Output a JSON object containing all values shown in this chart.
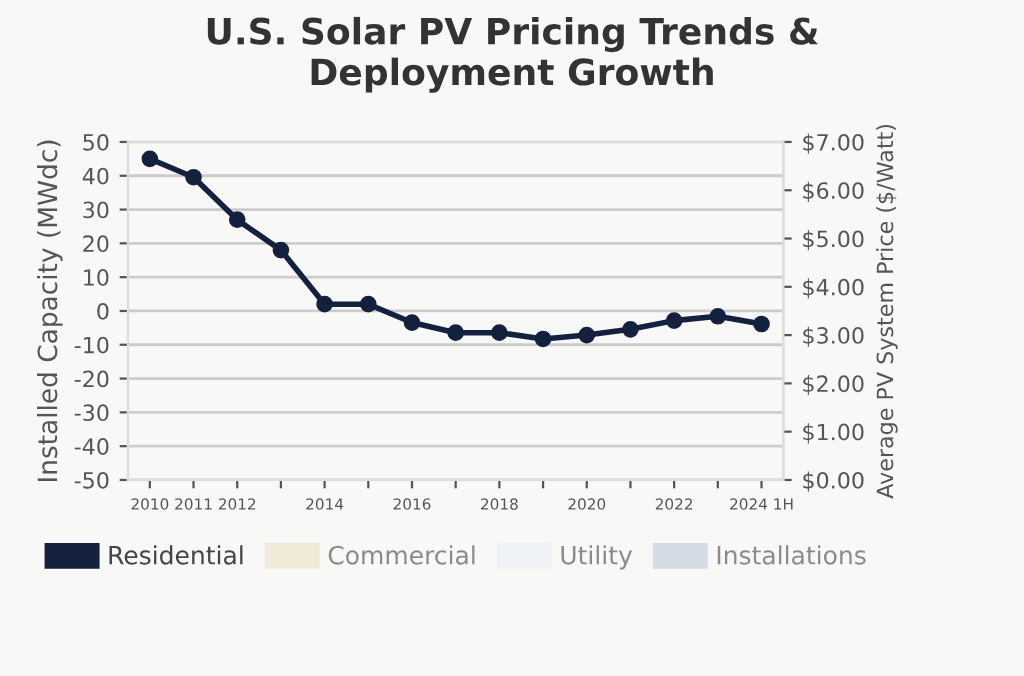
{
  "chart_data": {
    "type": "line",
    "title": "U.S. Solar PV Pricing Trends & Deployment Growth",
    "categories": [
      "2010",
      "2011",
      "2012",
      null,
      "2014",
      null,
      "2016",
      null,
      "2018",
      null,
      "2020",
      null,
      "2022",
      null,
      "2024 1H"
    ],
    "series": [
      {
        "name": "Residential",
        "color": "#13213f",
        "axis": "y2",
        "values": [
          6.65,
          6.27,
          5.39,
          4.76,
          3.64,
          3.64,
          3.26,
          3.05,
          3.05,
          2.92,
          3.0,
          3.12,
          3.3,
          3.39,
          3.23
        ]
      },
      {
        "name": "Commercial",
        "color": "#f1ead8",
        "axis": "y2",
        "values": [
          null,
          null,
          null,
          null,
          null,
          null,
          null,
          null,
          null,
          null,
          null,
          null,
          null,
          null,
          null
        ]
      },
      {
        "name": "Utility",
        "color": "#eef1f6",
        "axis": "y2",
        "values": [
          null,
          null,
          null,
          null,
          null,
          null,
          null,
          null,
          null,
          null,
          null,
          null,
          null,
          null,
          null
        ]
      },
      {
        "name": "Installations",
        "color": "#d3dbe5",
        "values": [
          null,
          null,
          null,
          null,
          null,
          null,
          null,
          null,
          null,
          null,
          null,
          null,
          null,
          null,
          null
        ]
      }
    ],
    "ylabel": "Installed Capacity (MWdc)",
    "y2label": "Average PV System Price ($/Watt)",
    "ylim": [
      -50,
      50
    ],
    "yticks": [
      -50,
      -40,
      -30,
      -20,
      -10,
      0,
      10,
      20,
      30,
      40,
      50
    ],
    "y2lim": [
      0,
      7
    ],
    "y2ticks": [
      {
        "value": 0,
        "label": "$0.00"
      },
      {
        "value": 1,
        "label": "$1.00"
      },
      {
        "value": 2,
        "label": "$2.00"
      },
      {
        "value": 3,
        "label": "$3.00"
      },
      {
        "value": 4,
        "label": "$4.00"
      },
      {
        "value": 5,
        "label": "$5.00"
      },
      {
        "value": 6,
        "label": "$6.00"
      },
      {
        "value": 7,
        "label": "$7.00"
      }
    ],
    "grid": "y",
    "legend": "bottom",
    "marker": "circle",
    "line_style": "solid"
  }
}
